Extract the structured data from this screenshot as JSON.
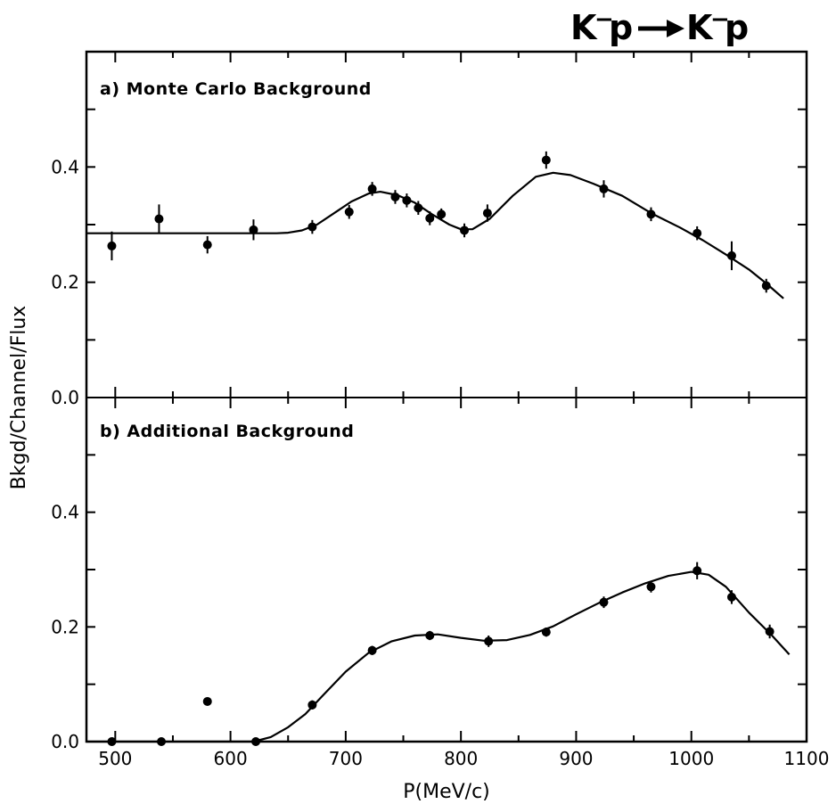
{
  "figure": {
    "reaction": {
      "particle": "K",
      "charge": "−",
      "target": "p"
    }
  },
  "chart_data": [
    {
      "type": "scatter",
      "panel_label": "a) Monte Carlo Background",
      "xlabel": "P(MeV/c)",
      "ylabel": "Bkgd/Channel/Flux",
      "xlim": [
        475,
        1100
      ],
      "ylim": [
        0,
        0.6
      ],
      "x_ticks": [
        500,
        600,
        700,
        800,
        900,
        1000,
        1100
      ],
      "y_ticks": [
        "0.0",
        "0.2",
        "0.4"
      ],
      "series": [
        {
          "points": [
            {
              "x": 497,
              "y": 0.263,
              "err": 0.025
            },
            {
              "x": 538,
              "y": 0.31,
              "err": 0.025
            },
            {
              "x": 580,
              "y": 0.265,
              "err": 0.015
            },
            {
              "x": 620,
              "y": 0.291,
              "err": 0.018
            },
            {
              "x": 671,
              "y": 0.296,
              "err": 0.012
            },
            {
              "x": 703,
              "y": 0.322,
              "err": 0.012
            },
            {
              "x": 723,
              "y": 0.362,
              "err": 0.012
            },
            {
              "x": 743,
              "y": 0.348,
              "err": 0.012
            },
            {
              "x": 753,
              "y": 0.342,
              "err": 0.012
            },
            {
              "x": 763,
              "y": 0.329,
              "err": 0.012
            },
            {
              "x": 773,
              "y": 0.311,
              "err": 0.012
            },
            {
              "x": 783,
              "y": 0.318,
              "err": 0.01
            },
            {
              "x": 803,
              "y": 0.29,
              "err": 0.012
            },
            {
              "x": 823,
              "y": 0.32,
              "err": 0.015
            },
            {
              "x": 874,
              "y": 0.412,
              "err": 0.015
            },
            {
              "x": 924,
              "y": 0.362,
              "err": 0.015
            },
            {
              "x": 965,
              "y": 0.318,
              "err": 0.012
            },
            {
              "x": 1005,
              "y": 0.285,
              "err": 0.012
            },
            {
              "x": 1035,
              "y": 0.246,
              "err": 0.025
            },
            {
              "x": 1065,
              "y": 0.194,
              "err": 0.012
            }
          ],
          "fit_curve": [
            [
              475,
              0.285
            ],
            [
              640,
              0.285
            ],
            [
              650,
              0.286
            ],
            [
              662,
              0.29
            ],
            [
              675,
              0.3
            ],
            [
              690,
              0.32
            ],
            [
              705,
              0.34
            ],
            [
              720,
              0.354
            ],
            [
              730,
              0.357
            ],
            [
              745,
              0.351
            ],
            [
              760,
              0.338
            ],
            [
              775,
              0.318
            ],
            [
              790,
              0.3
            ],
            [
              800,
              0.292
            ],
            [
              810,
              0.292
            ],
            [
              825,
              0.31
            ],
            [
              845,
              0.35
            ],
            [
              865,
              0.383
            ],
            [
              880,
              0.39
            ],
            [
              895,
              0.386
            ],
            [
              915,
              0.371
            ],
            [
              940,
              0.35
            ],
            [
              965,
              0.32
            ],
            [
              990,
              0.295
            ],
            [
              1010,
              0.273
            ],
            [
              1030,
              0.248
            ],
            [
              1050,
              0.222
            ],
            [
              1065,
              0.198
            ],
            [
              1080,
              0.172
            ]
          ]
        }
      ]
    },
    {
      "type": "scatter",
      "panel_label": "b) Additional Background",
      "xlabel": "P(MeV/c)",
      "ylabel": "Bkgd/Channel/Flux",
      "xlim": [
        475,
        1100
      ],
      "ylim": [
        0,
        0.6
      ],
      "x_ticks": [
        "500",
        "600",
        "700",
        "800",
        "900",
        "1000",
        "1100"
      ],
      "y_ticks": [
        "0.0",
        "0.2",
        "0.4"
      ],
      "series": [
        {
          "points": [
            {
              "x": 497,
              "y": 0.0,
              "err": 0
            },
            {
              "x": 540,
              "y": 0.0,
              "err": 0
            },
            {
              "x": 580,
              "y": 0.07,
              "err": 0
            },
            {
              "x": 622,
              "y": 0.0,
              "err": 0
            },
            {
              "x": 671,
              "y": 0.064,
              "err": 0.008
            },
            {
              "x": 723,
              "y": 0.159,
              "err": 0.008
            },
            {
              "x": 773,
              "y": 0.185,
              "err": 0.008
            },
            {
              "x": 824,
              "y": 0.175,
              "err": 0.01
            },
            {
              "x": 874,
              "y": 0.191,
              "err": 0.008
            },
            {
              "x": 924,
              "y": 0.243,
              "err": 0.01
            },
            {
              "x": 965,
              "y": 0.27,
              "err": 0.01
            },
            {
              "x": 1005,
              "y": 0.298,
              "err": 0.015
            },
            {
              "x": 1035,
              "y": 0.252,
              "err": 0.012
            },
            {
              "x": 1068,
              "y": 0.192,
              "err": 0.012
            }
          ],
          "fit_curve": [
            [
              475,
              0.0
            ],
            [
              620,
              0.0
            ],
            [
              635,
              0.008
            ],
            [
              650,
              0.025
            ],
            [
              665,
              0.048
            ],
            [
              680,
              0.08
            ],
            [
              700,
              0.122
            ],
            [
              720,
              0.155
            ],
            [
              740,
              0.175
            ],
            [
              760,
              0.185
            ],
            [
              780,
              0.187
            ],
            [
              800,
              0.181
            ],
            [
              820,
              0.176
            ],
            [
              840,
              0.177
            ],
            [
              860,
              0.186
            ],
            [
              880,
              0.201
            ],
            [
              900,
              0.222
            ],
            [
              920,
              0.242
            ],
            [
              940,
              0.26
            ],
            [
              960,
              0.276
            ],
            [
              980,
              0.289
            ],
            [
              1000,
              0.296
            ],
            [
              1015,
              0.291
            ],
            [
              1030,
              0.27
            ],
            [
              1050,
              0.225
            ],
            [
              1070,
              0.185
            ],
            [
              1085,
              0.152
            ]
          ]
        }
      ]
    }
  ]
}
